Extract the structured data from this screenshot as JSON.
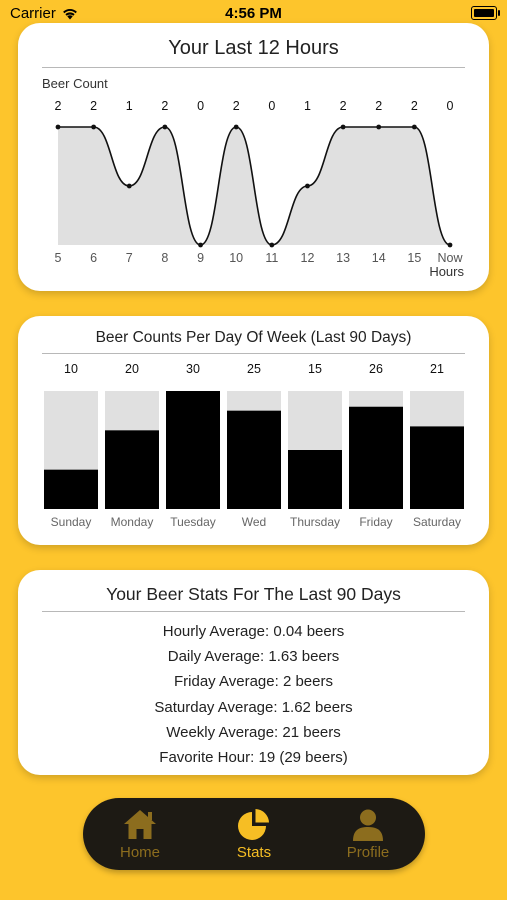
{
  "status_bar": {
    "carrier": "Carrier",
    "time": "4:56 PM"
  },
  "hours_card": {
    "title": "Your Last 12 Hours",
    "ylabel": "Beer Count",
    "xlabel": "Hours"
  },
  "week_card": {
    "title": "Beer Counts Per Day Of Week (Last 90 Days)"
  },
  "stats_card": {
    "title": "Your Beer Stats For The Last 90 Days",
    "lines": [
      "Hourly Average: 0.04 beers",
      "Daily Average: 1.63 beers",
      "Friday Average: 2 beers",
      "Saturday Average: 1.62 beers",
      "Weekly Average: 21 beers",
      "Favorite Hour: 19 (29 beers)"
    ]
  },
  "tabs": [
    {
      "label": "Home",
      "icon": "home-icon",
      "active": false
    },
    {
      "label": "Stats",
      "icon": "pie-chart-icon",
      "active": true
    },
    {
      "label": "Profile",
      "icon": "person-icon",
      "active": false
    }
  ],
  "colors": {
    "background": "#FDC52C",
    "accent": "#F6BE24",
    "tabbar": "#1d1a14",
    "fill": "#e0e0e0"
  },
  "chart_data": [
    {
      "type": "area",
      "title": "Your Last 12 Hours",
      "ylabel": "Beer Count",
      "xlabel": "Hours",
      "x": [
        "5",
        "6",
        "7",
        "8",
        "9",
        "10",
        "11",
        "12",
        "13",
        "14",
        "15",
        "Now"
      ],
      "values": [
        2,
        2,
        1,
        2,
        0,
        2,
        0,
        1,
        2,
        2,
        2,
        0
      ],
      "ylim": [
        0,
        2
      ]
    },
    {
      "type": "bar",
      "title": "Beer Counts Per Day Of Week (Last 90 Days)",
      "categories": [
        "Sunday",
        "Monday",
        "Tuesday",
        "Wed",
        "Thursday",
        "Friday",
        "Saturday"
      ],
      "values": [
        10,
        20,
        30,
        25,
        15,
        26,
        21
      ],
      "ylim": [
        0,
        30
      ]
    }
  ]
}
